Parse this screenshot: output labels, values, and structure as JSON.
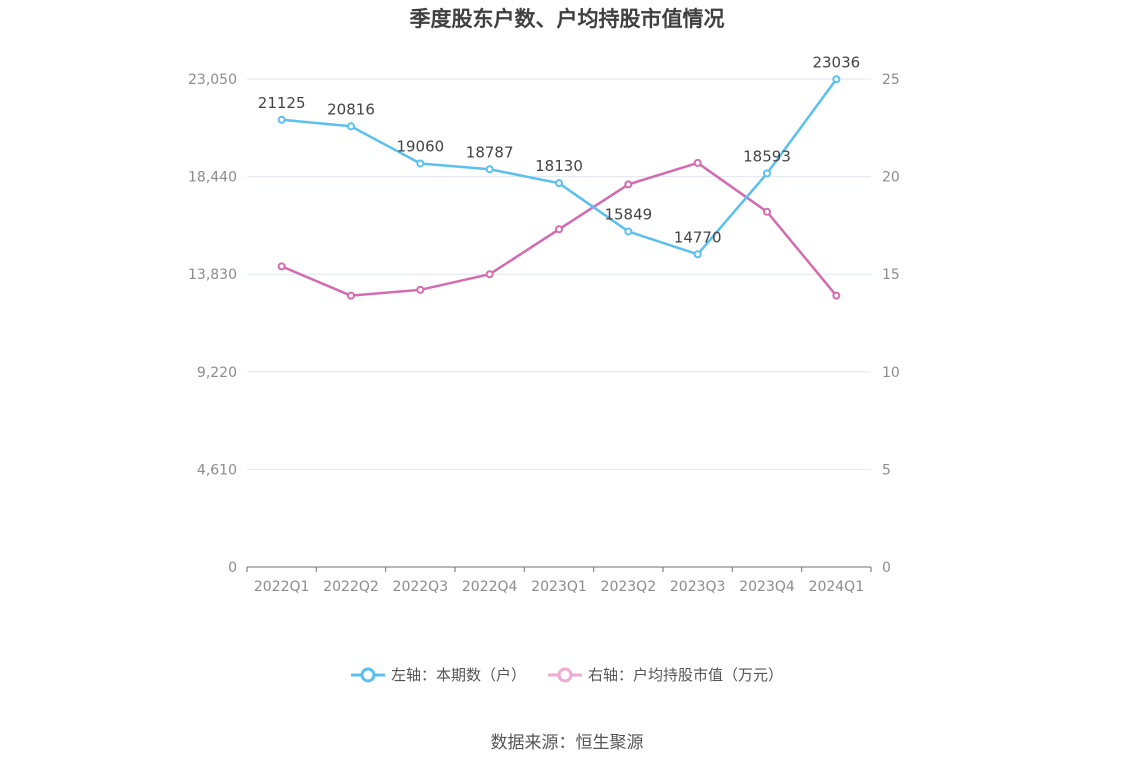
{
  "chart_data": {
    "type": "line",
    "title": "季度股东户数、户均持股市值情况",
    "categories": [
      "2022Q1",
      "2022Q2",
      "2022Q3",
      "2022Q4",
      "2023Q1",
      "2023Q2",
      "2023Q3",
      "2023Q4",
      "2024Q1"
    ],
    "y_left": {
      "ticks": [
        "0",
        "4,610",
        "9,220",
        "13,830",
        "18,440",
        "23,050"
      ],
      "range": [
        0,
        23050
      ]
    },
    "y_right": {
      "ticks": [
        "0",
        "5",
        "10",
        "15",
        "20",
        "25"
      ],
      "range": [
        0,
        25
      ]
    },
    "series": [
      {
        "name": "左轴：本期数（户）",
        "axis": "left",
        "color": "#5bc0f0",
        "values": [
          21125,
          20816,
          19060,
          18787,
          18130,
          15849,
          14770,
          18593,
          23036
        ],
        "labels": [
          "21125",
          "20816",
          "19060",
          "18787",
          "18130",
          "15849",
          "14770",
          "18593",
          "23036"
        ]
      },
      {
        "name": "右轴：户均持股市值（万元）",
        "axis": "right",
        "color": "#d46ab0",
        "values": [
          15.4,
          13.9,
          14.2,
          15.0,
          17.3,
          19.6,
          20.7,
          18.2,
          13.9
        ]
      }
    ],
    "grid": true,
    "legend_position": "bottom"
  },
  "source": "数据来源：恒生聚源"
}
